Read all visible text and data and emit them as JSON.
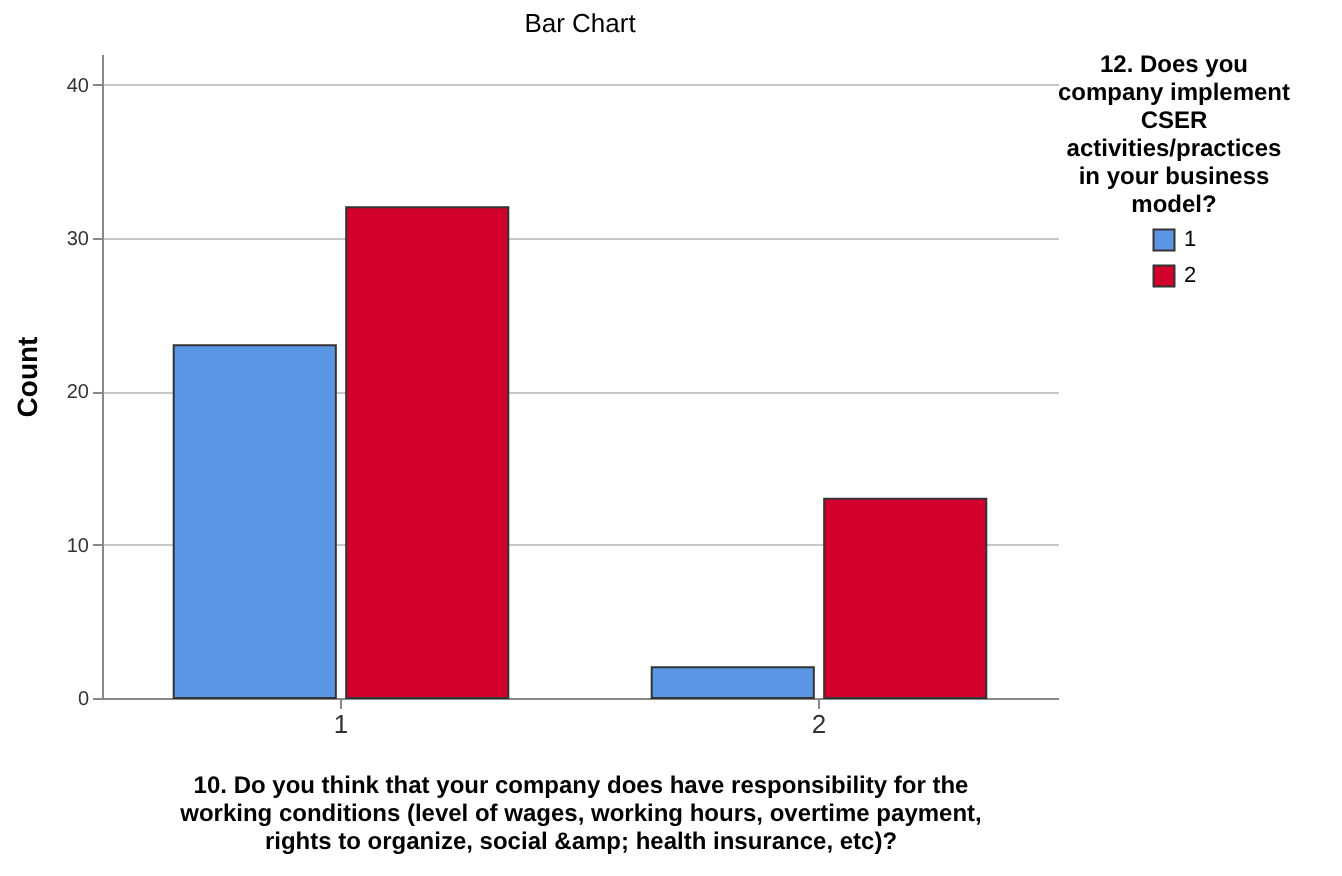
{
  "chart_data": {
    "type": "bar",
    "title": "Bar Chart",
    "xlabel": "10.  Do you think that your company does have responsibility for the working conditions (level of wages, working hours, overtime payment, rights to organize, social &amp; health insurance, etc)?",
    "ylabel": "Count",
    "legend_title": "12. Does you company implement CSER activities/practices in your business model?",
    "categories": [
      "1",
      "2"
    ],
    "series": [
      {
        "name": "1",
        "color": "#5a96e3",
        "values": [
          23,
          2
        ]
      },
      {
        "name": "2",
        "color": "#d2002c",
        "values": [
          32,
          13
        ]
      }
    ],
    "ylim": [
      0,
      42
    ],
    "yticks": [
      0,
      10,
      20,
      30,
      40
    ],
    "grid": "y",
    "legend": "top right"
  }
}
